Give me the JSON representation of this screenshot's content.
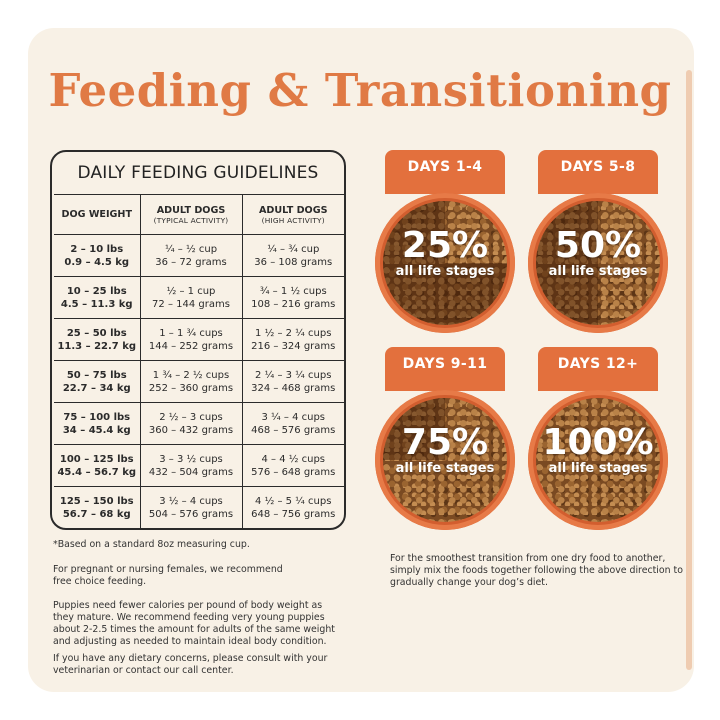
{
  "title": "Feeding & Transitioning",
  "table": {
    "title": "DAILY FEEDING GUIDELINES",
    "headers": {
      "weight": "DOG WEIGHT",
      "typical_main": "ADULT DOGS",
      "typical_sub": "(TYPICAL ACTIVITY)",
      "high_main": "ADULT DOGS",
      "high_sub": "(HIGH ACTIVITY)"
    },
    "rows": [
      {
        "weight_lbs": "2 – 10 lbs",
        "weight_kg": "0.9 – 4.5 kg",
        "typical_cups": "¼ – ½ cup",
        "typical_grams": "36 – 72 grams",
        "high_cups": "¼ – ¾ cup",
        "high_grams": "36 – 108 grams"
      },
      {
        "weight_lbs": "10 – 25 lbs",
        "weight_kg": "4.5 – 11.3 kg",
        "typical_cups": "½ – 1 cup",
        "typical_grams": "72 – 144 grams",
        "high_cups": "¾ – 1 ½ cups",
        "high_grams": "108 – 216 grams"
      },
      {
        "weight_lbs": "25 – 50 lbs",
        "weight_kg": "11.3 – 22.7 kg",
        "typical_cups": "1 – 1 ¾ cups",
        "typical_grams": "144 – 252 grams",
        "high_cups": "1 ½ – 2 ¼ cups",
        "high_grams": "216 – 324 grams"
      },
      {
        "weight_lbs": "50 – 75 lbs",
        "weight_kg": "22.7 – 34 kg",
        "typical_cups": "1 ¾ – 2 ½ cups",
        "typical_grams": "252 – 360 grams",
        "high_cups": "2 ¼ – 3 ¼ cups",
        "high_grams": "324 – 468 grams"
      },
      {
        "weight_lbs": "75 – 100 lbs",
        "weight_kg": "34 – 45.4 kg",
        "typical_cups": "2 ½ – 3 cups",
        "typical_grams": "360 – 432 grams",
        "high_cups": "3 ¼ – 4 cups",
        "high_grams": "468 – 576 grams"
      },
      {
        "weight_lbs": "100 – 125 lbs",
        "weight_kg": "45.4 – 56.7 kg",
        "typical_cups": "3 – 3 ½ cups",
        "typical_grams": "432 – 504 grams",
        "high_cups": "4 – 4 ½ cups",
        "high_grams": "576 – 648 grams"
      },
      {
        "weight_lbs": "125 – 150 lbs",
        "weight_kg": "56.7 – 68 kg",
        "typical_cups": "3 ½ – 4 cups",
        "typical_grams": "504 – 576 grams",
        "high_cups": "4 ½ – 5 ¼ cups",
        "high_grams": "648 – 756 grams"
      }
    ]
  },
  "notes": {
    "measuring_cup": "*Based on a standard 8oz measuring cup.",
    "pregnant": "For pregnant or nursing females, we recommend free choice feeding.",
    "puppies": "Puppies need fewer calories per pound of body weight as they mature. We recommend feeding very young puppies about 2-2.5 times the amount for adults of the same weight and adjusting as needed to maintain ideal body condition.",
    "concerns": "If you have any dietary concerns, please consult with your veterinarian or contact our call center."
  },
  "transition": {
    "stages": [
      {
        "days": "DAYS 1-4",
        "percent": "25%",
        "label": "all life stages",
        "fraction": 0.25
      },
      {
        "days": "DAYS 5-8",
        "percent": "50%",
        "label": "all life stages",
        "fraction": 0.5
      },
      {
        "days": "DAYS 9-11",
        "percent": "75%",
        "label": "all life stages",
        "fraction": 0.75
      },
      {
        "days": "DAYS 12+",
        "percent": "100%",
        "label": "all life stages",
        "fraction": 1.0
      }
    ],
    "note": "For the smoothest transition from one dry food to another, simply mix the foods together following the above direction to gradually change your dog’s diet."
  },
  "colors": {
    "accent": "#e07a45",
    "tab": "#e3703d",
    "background": "#f8f1e6"
  }
}
